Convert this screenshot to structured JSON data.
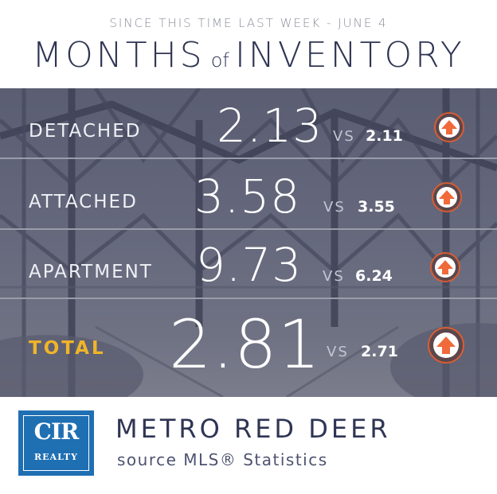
{
  "header": {
    "subtitle": "SINCE THIS TIME LAST WEEK - JUNE 4",
    "title_part1": "MONTHS",
    "title_part2": "of",
    "title_part3": "INVENTORY"
  },
  "rows": [
    {
      "label": "DETACHED",
      "value": "2.13",
      "vs": "VS",
      "previous": "2.11",
      "trend": "up"
    },
    {
      "label": "ATTACHED",
      "value": "3.58",
      "vs": "VS",
      "previous": "3.55",
      "trend": "up"
    },
    {
      "label": "APARTMENT",
      "value": "9.73",
      "vs": "VS",
      "previous": "6.24",
      "trend": "up"
    },
    {
      "label": "TOTAL",
      "value": "2.81",
      "vs": "VS",
      "previous": "2.71",
      "trend": "up"
    }
  ],
  "footer": {
    "logo_main": "CIR",
    "logo_sub": "REALTY",
    "region": "METRO RED DEER",
    "source": "source MLS® Statistics"
  },
  "colors": {
    "title": "#2f3553",
    "total_label": "#f0b429",
    "arrow": "#f06a3a",
    "logo_bg": "#1f6fb3"
  },
  "icons": {
    "trend_up": "up-arrow-icon"
  }
}
